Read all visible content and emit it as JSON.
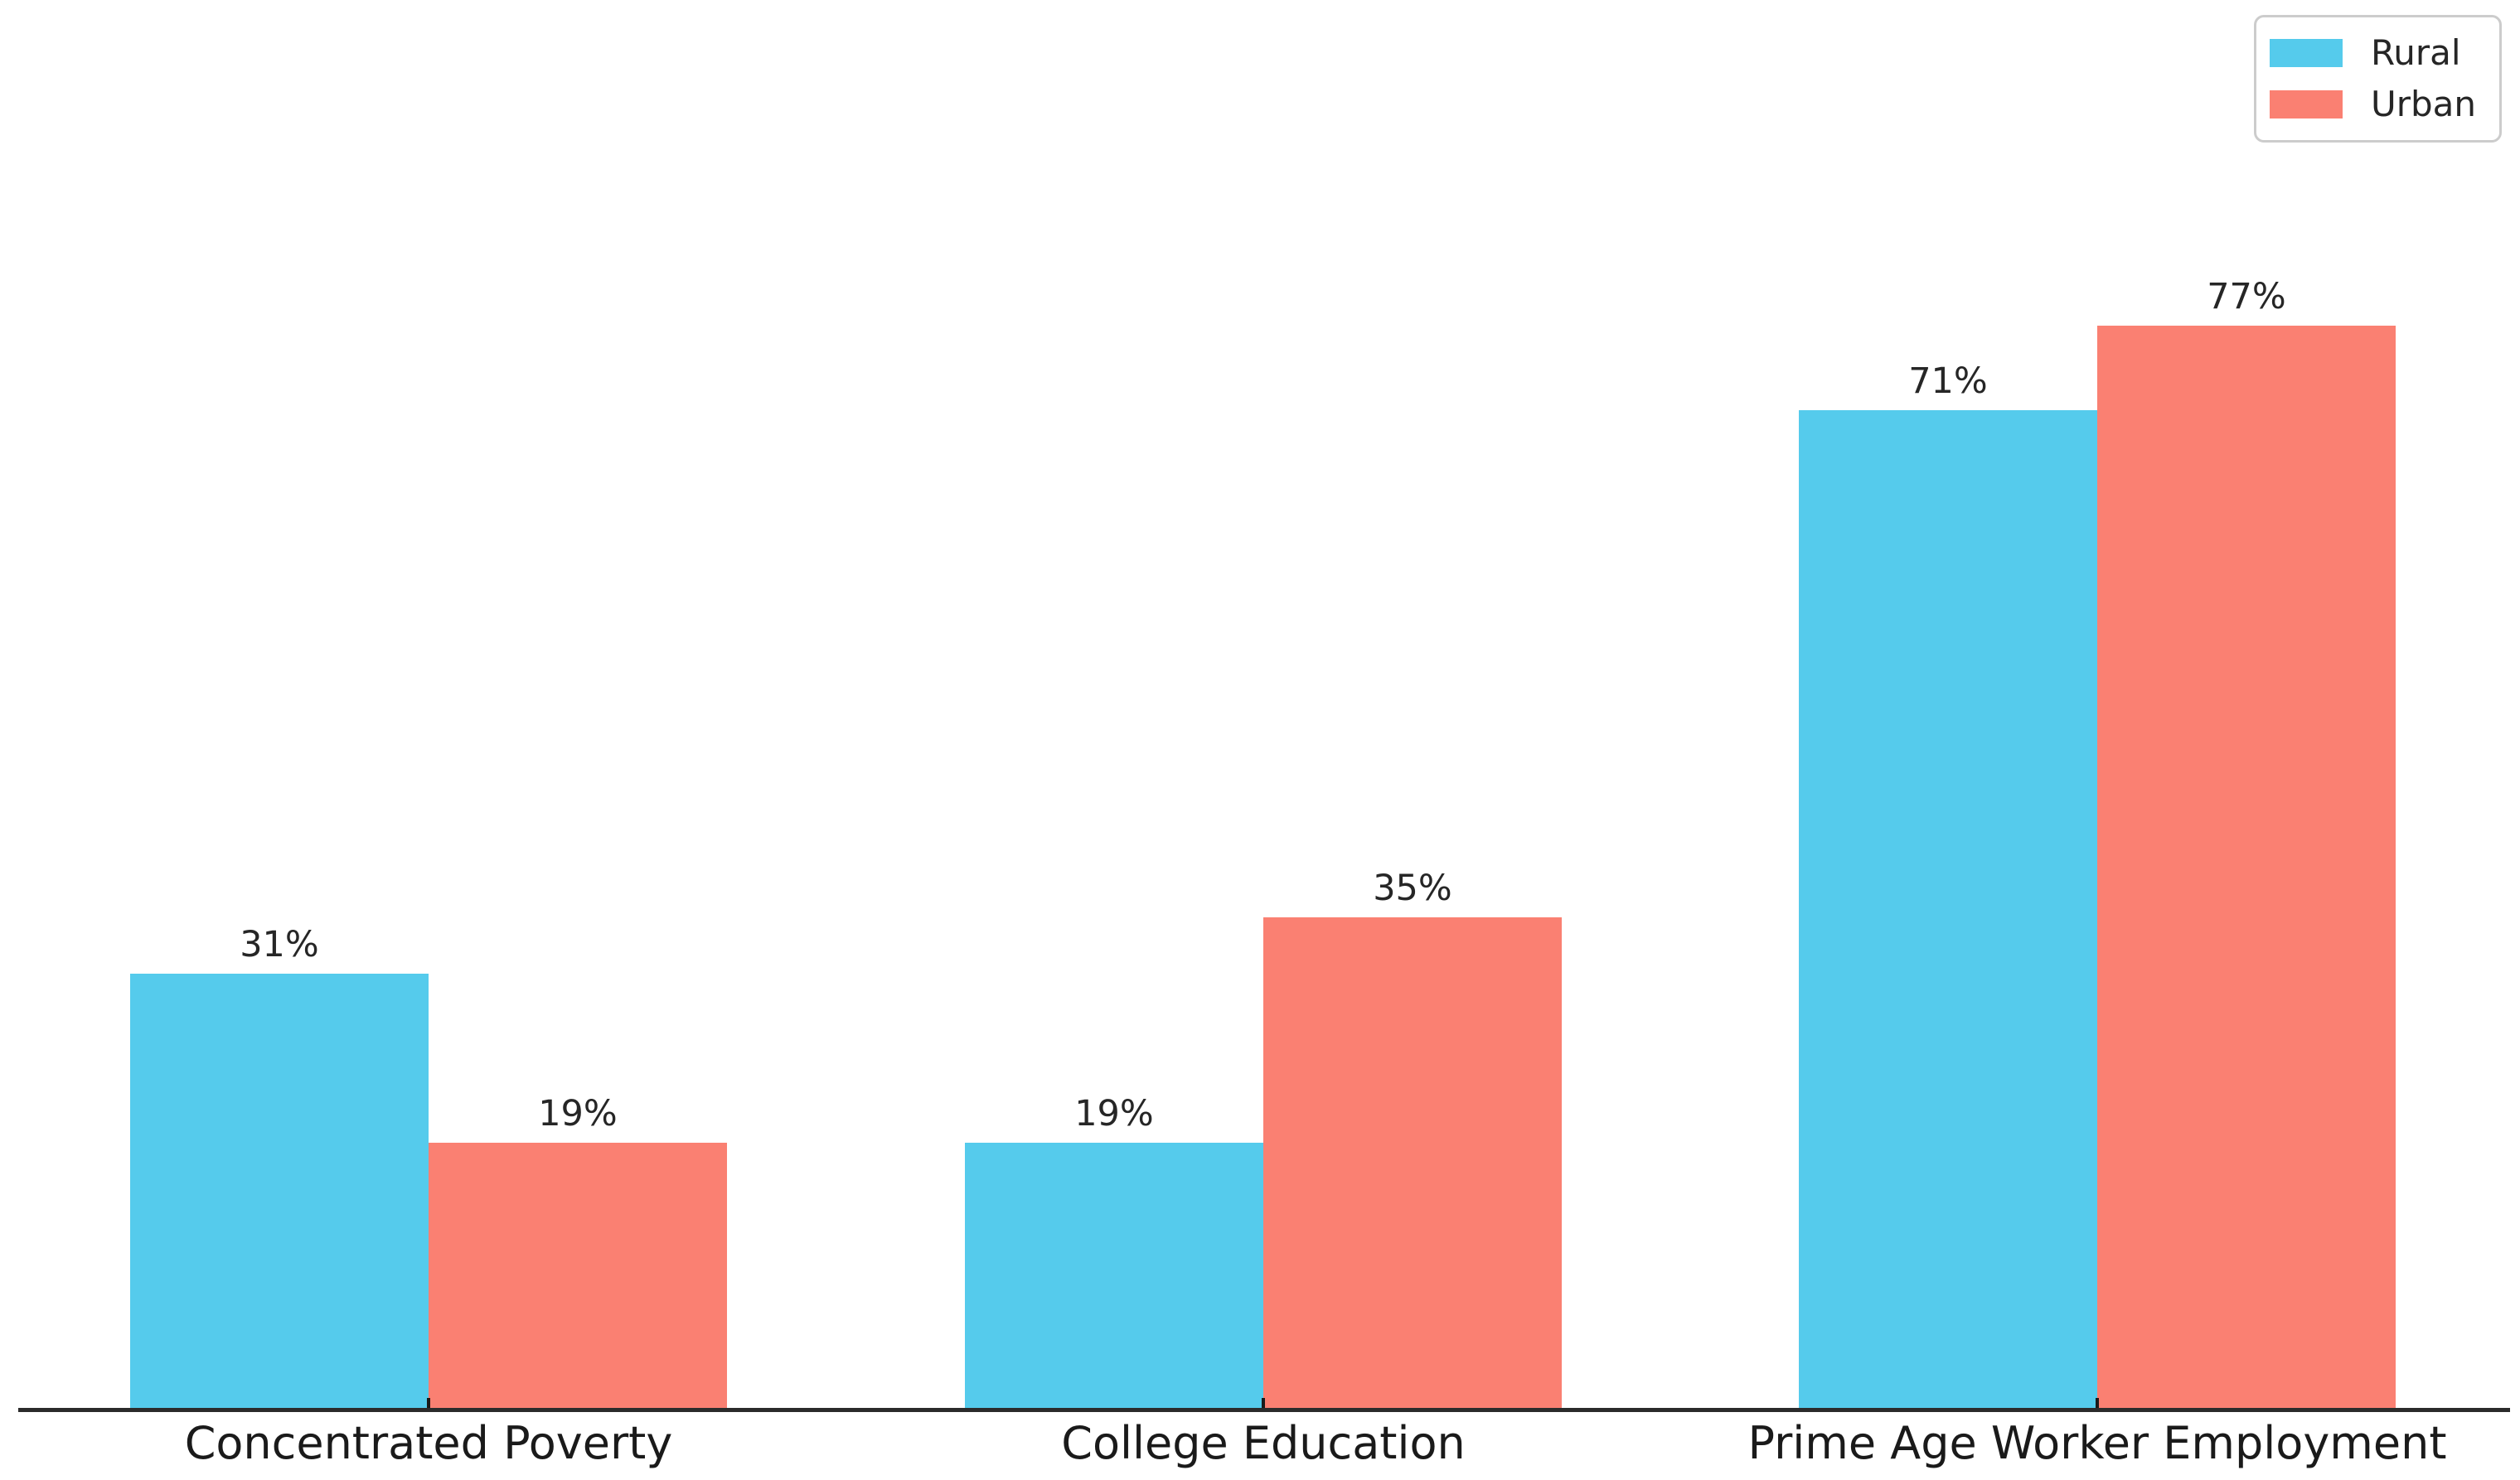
{
  "chart_data": {
    "type": "bar",
    "title": "",
    "xlabel": "",
    "ylabel": "",
    "categories": [
      "Concentrated Poverty",
      "College Education",
      "Prime Age Worker Employment"
    ],
    "series": [
      {
        "name": "Rural",
        "color": "#55CBEC",
        "values": [
          31,
          19,
          71
        ],
        "labels": [
          "31%",
          "19%",
          "71%"
        ]
      },
      {
        "name": "Urban",
        "color": "#FA8072",
        "values": [
          19,
          35,
          77
        ],
        "labels": [
          "19%",
          "35%",
          "77%"
        ]
      }
    ],
    "unit": "%",
    "ylim": [
      0,
      100
    ],
    "grid": false,
    "legend": {
      "position": "upper right",
      "entries": [
        "Rural",
        "Urban"
      ]
    },
    "axes": {
      "y_axis_visible": false,
      "bottom_spine_only": true,
      "tick_direction": "in",
      "axis_color": "#2b2b2b",
      "text_color": "#262626"
    }
  }
}
